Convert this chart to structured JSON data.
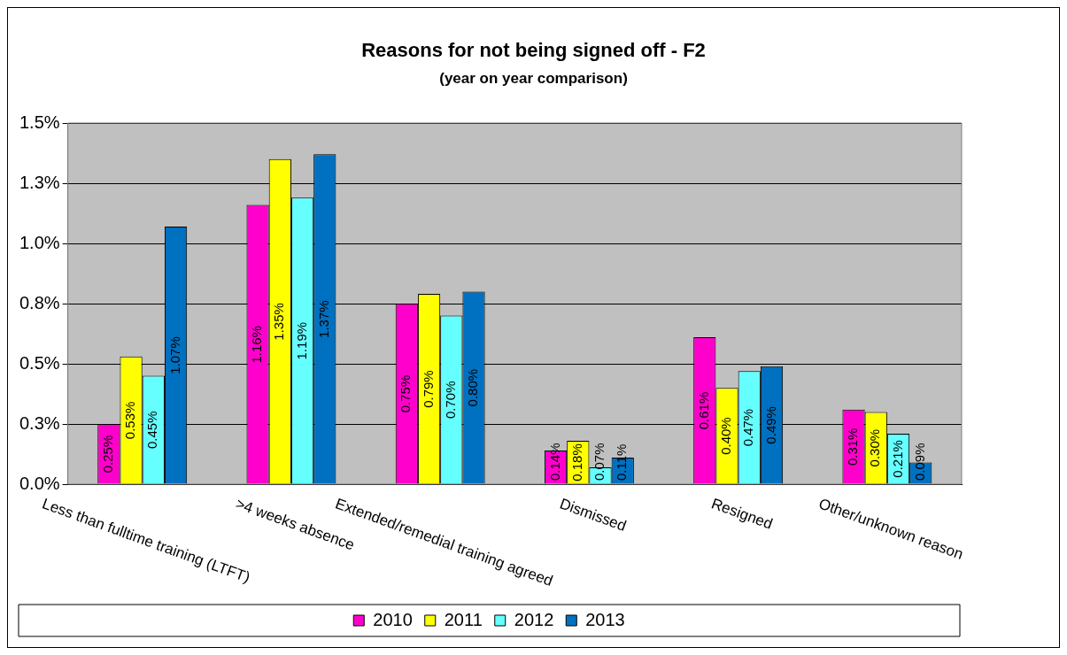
{
  "chart_data": {
    "type": "bar",
    "title": "Reasons for not being signed off - F2",
    "subtitle": "(year on year comparison)",
    "categories": [
      "Less than fulltime training (LTFT)",
      ">4 weeks absence",
      "Extended/remedial training agreed",
      "Dismissed",
      "Resigned",
      "Other/unknown reason"
    ],
    "series": [
      {
        "name": "2010",
        "color": "#ff00cc",
        "values": [
          0.25,
          1.16,
          0.75,
          0.14,
          0.61,
          0.31
        ],
        "value_labels": [
          "0.25%",
          "1.16%",
          "0.75%",
          "0.14%",
          "0.61%",
          "0.31%"
        ]
      },
      {
        "name": "2011",
        "color": "#ffff00",
        "values": [
          0.53,
          1.35,
          0.79,
          0.18,
          0.4,
          0.3
        ],
        "value_labels": [
          "0.53%",
          "1.35%",
          "0.79%",
          "0.18%",
          "0.40%",
          "0.30%"
        ]
      },
      {
        "name": "2012",
        "color": "#66ffff",
        "values": [
          0.45,
          1.19,
          0.7,
          0.07,
          0.47,
          0.21
        ],
        "value_labels": [
          "0.45%",
          "1.19%",
          "0.70%",
          "0.07%",
          "0.47%",
          "0.21%"
        ]
      },
      {
        "name": "2013",
        "color": "#0070c0",
        "values": [
          1.07,
          1.37,
          0.8,
          0.11,
          0.49,
          0.09
        ],
        "value_labels": [
          "1.07%",
          "1.37%",
          "0.80%",
          "0.11%",
          "0.49%",
          "0.09%"
        ]
      }
    ],
    "ylim": [
      0,
      1.5
    ],
    "yticks": [
      {
        "value": 0,
        "label": "0.0%"
      },
      {
        "value": 0.25,
        "label": "0.3%"
      },
      {
        "value": 0.5,
        "label": "0.5%"
      },
      {
        "value": 0.75,
        "label": "0.8%"
      },
      {
        "value": 1,
        "label": "1.0%"
      },
      {
        "value": 1.25,
        "label": "1.3%"
      },
      {
        "value": 1.5,
        "label": "1.5%"
      }
    ],
    "grid": "y",
    "legend": "bottom"
  }
}
